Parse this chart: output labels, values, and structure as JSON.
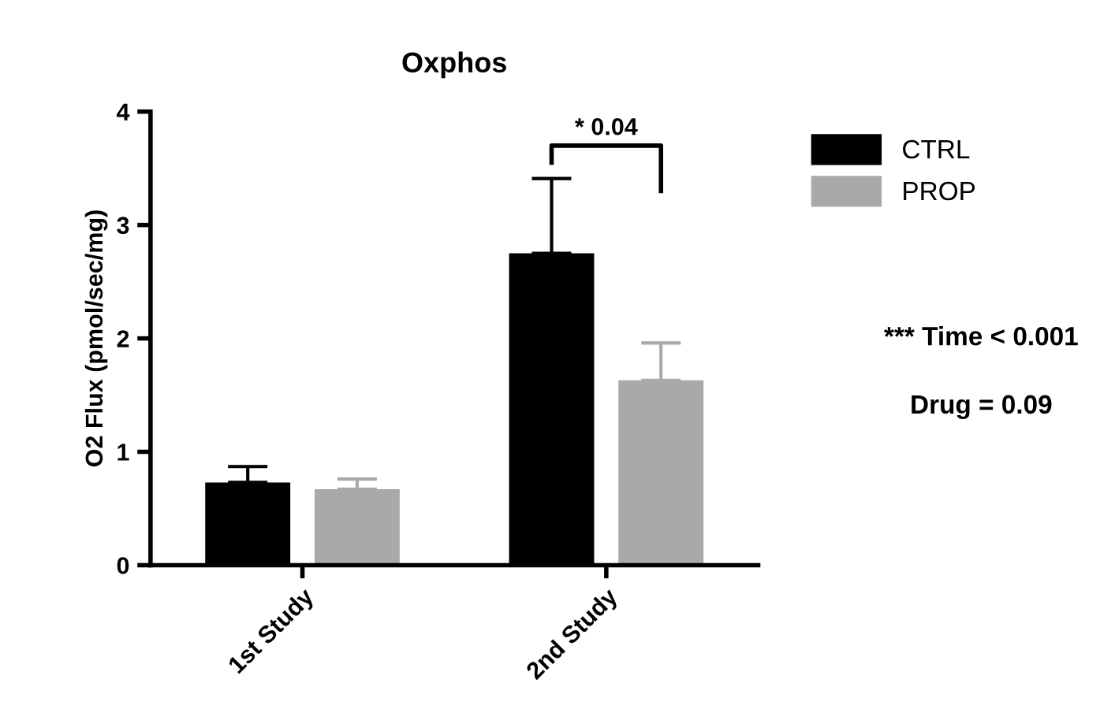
{
  "chart_data": {
    "type": "bar",
    "title": "Oxphos",
    "ylabel": "O2 Flux (pmol/sec/mg)",
    "categories": [
      "1st Study",
      "2nd Study"
    ],
    "series": [
      {
        "name": "CTRL",
        "color": "#000000",
        "values": [
          0.73,
          2.75
        ],
        "errors": [
          [
            0.73,
            0.87
          ],
          [
            2.75,
            3.41
          ]
        ]
      },
      {
        "name": "PROP",
        "color": "#a9a9ab",
        "values": [
          0.67,
          1.63
        ],
        "errors": [
          [
            0.67,
            0.76
          ],
          [
            1.63,
            1.96
          ]
        ]
      }
    ],
    "ylim": [
      0,
      4
    ],
    "yticks": [
      0,
      1,
      2,
      3,
      4
    ],
    "grid": false,
    "legend": "top right",
    "annotations": [
      "* 0.04",
      "*** Time < 0.001",
      "Drug = 0.09"
    ]
  }
}
